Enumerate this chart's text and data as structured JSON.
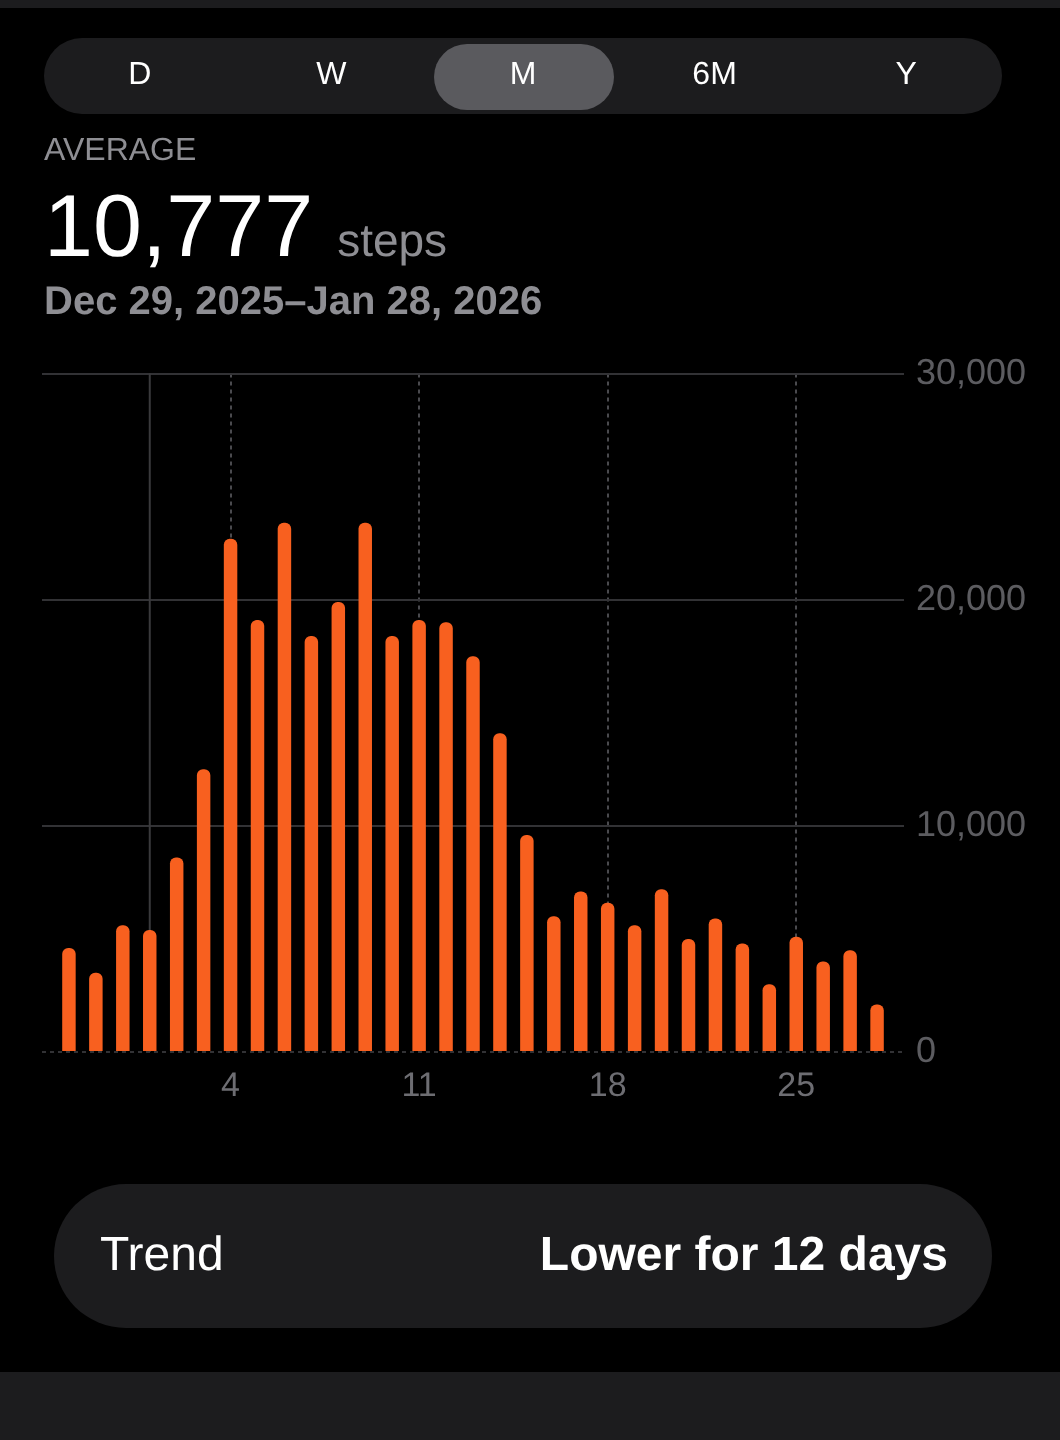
{
  "chart_data": {
    "type": "bar",
    "title": "AVERAGE",
    "subtitle": "Dec 29, 2025–Jan 28, 2026",
    "annotations": [
      "D",
      "W",
      "M",
      "6M",
      "Y",
      "10,777",
      "steps",
      "Trend",
      "Lower for 12 days"
    ],
    "x": [
      "2025-12-29",
      "2025-12-30",
      "2025-12-31",
      "2026-01-01",
      "2026-01-02",
      "2026-01-03",
      "2026-01-04",
      "2026-01-05",
      "2026-01-06",
      "2026-01-07",
      "2026-01-08",
      "2026-01-09",
      "2026-01-10",
      "2026-01-11",
      "2026-01-12",
      "2026-01-13",
      "2026-01-14",
      "2026-01-15",
      "2026-01-16",
      "2026-01-17",
      "2026-01-18",
      "2026-01-19",
      "2026-01-20",
      "2026-01-21",
      "2026-01-22",
      "2026-01-23",
      "2026-01-24",
      "2026-01-25",
      "2026-01-26",
      "2026-01-27",
      "2026-01-28"
    ],
    "values": [
      4600,
      3500,
      5600,
      5400,
      8600,
      12500,
      22700,
      19100,
      23400,
      18400,
      19900,
      23400,
      18400,
      19100,
      19000,
      17500,
      14100,
      9600,
      6000,
      7100,
      6600,
      5600,
      7200,
      5000,
      5900,
      4800,
      3000,
      5100,
      4000,
      4500,
      2100
    ],
    "color": "#f8601f",
    "xlim": [
      "2025-12-28",
      "2026-01-29"
    ],
    "xticks": [
      {
        "value": "2026-01-04",
        "label": "4"
      },
      {
        "value": "2026-01-11",
        "label": "11"
      },
      {
        "value": "2026-01-18",
        "label": "18"
      },
      {
        "value": "2026-01-25",
        "label": "25"
      }
    ],
    "ylim": [
      0,
      30000
    ],
    "yticks": [
      0,
      {
        "value": 10000,
        "label": "10,000"
      },
      {
        "value": 20000,
        "label": "20,000"
      },
      {
        "value": 30000,
        "label": "30,000"
      }
    ],
    "grid": true,
    "ref_lines": [
      {
        "axis": "x",
        "value": "2026-01-01",
        "color": "#3a3a3c",
        "line_style": "solid"
      }
    ]
  }
}
